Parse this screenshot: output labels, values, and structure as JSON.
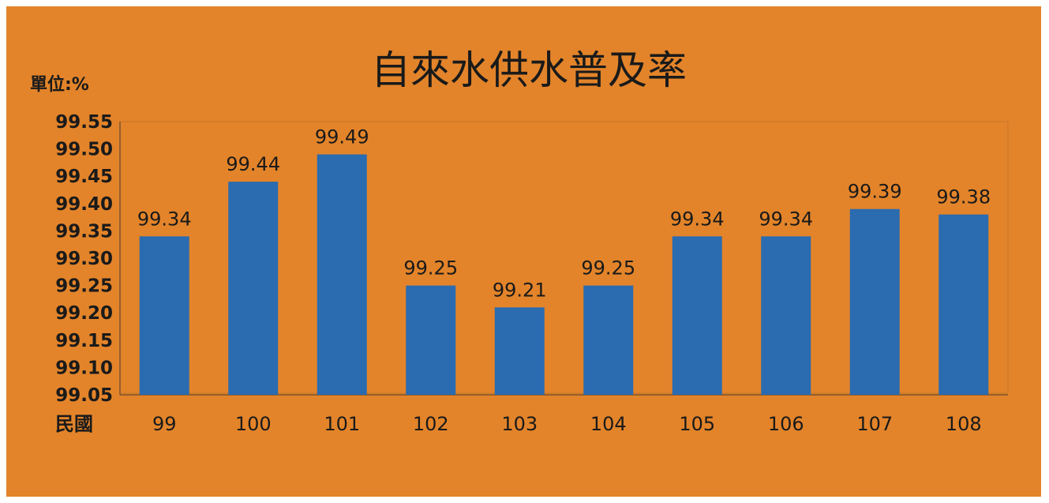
{
  "chart_data": {
    "type": "bar",
    "title": "自來水供水普及率",
    "unit_label": "單位:%",
    "x_prefix": "民國",
    "categories": [
      "99",
      "100",
      "101",
      "102",
      "103",
      "104",
      "105",
      "106",
      "107",
      "108"
    ],
    "values": [
      99.34,
      99.44,
      99.49,
      99.25,
      99.21,
      99.25,
      99.34,
      99.34,
      99.39,
      99.38
    ],
    "data_labels": [
      "99.34",
      "99.44",
      "99.49",
      "99.25",
      "99.21",
      "99.25",
      "99.34",
      "99.34",
      "99.39",
      "99.38"
    ],
    "yticks": [
      "99.05",
      "99.10",
      "99.15",
      "99.20",
      "99.25",
      "99.30",
      "99.35",
      "99.40",
      "99.45",
      "99.50",
      "99.55"
    ],
    "ylim": [
      99.05,
      99.55
    ],
    "grid": false,
    "legend": "none",
    "colors": {
      "background": "#e3842a",
      "bar": "#2b6bb0",
      "text": "#1a1a1a"
    }
  }
}
